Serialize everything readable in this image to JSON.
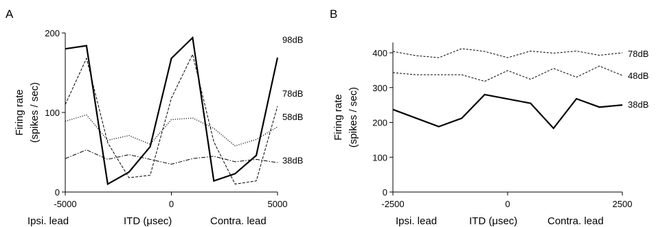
{
  "chart_data": [
    {
      "panel": "A",
      "type": "line",
      "title": "",
      "xlabel": "ITD (μsec)",
      "xlabel_left": "Ipsi. lead",
      "xlabel_right": "Contra. lead",
      "ylabel": "Firing rate",
      "ylabel_sub": "(spikes / sec)",
      "xlim": [
        -5000,
        5000
      ],
      "ylim": [
        0,
        200
      ],
      "xticks": [
        -5000,
        0,
        5000
      ],
      "yticks": [
        0,
        100,
        200
      ],
      "xtick_labels": [
        "-5000",
        "0",
        "5000"
      ],
      "ytick_labels": [
        "0",
        "100",
        "200"
      ],
      "series": [
        {
          "name": "98dB",
          "style": "solid-bold",
          "label_y": 192,
          "x": [
            -5000,
            -4000,
            -3000,
            -2000,
            -1000,
            0,
            1000,
            2000,
            3000,
            4000,
            5000
          ],
          "y": [
            180,
            184,
            10,
            25,
            57,
            168,
            194,
            14,
            23,
            46,
            169
          ]
        },
        {
          "name": "78dB",
          "style": "dashed",
          "label_y": 124,
          "x": [
            -5000,
            -4000,
            -3000,
            -2000,
            -1000,
            0,
            1000,
            2000,
            3000,
            4000,
            5000
          ],
          "y": [
            110,
            168,
            62,
            18,
            21,
            118,
            173,
            63,
            10,
            14,
            108
          ]
        },
        {
          "name": "58dB",
          "style": "dotted",
          "label_y": 95,
          "x": [
            -5000,
            -4000,
            -3000,
            -2000,
            -1000,
            0,
            1000,
            2000,
            3000,
            4000,
            5000
          ],
          "y": [
            89,
            97,
            65,
            71,
            60,
            91,
            93,
            80,
            58,
            66,
            82
          ]
        },
        {
          "name": "38dB",
          "style": "dashdot",
          "label_y": 40,
          "x": [
            -5000,
            -4000,
            -3000,
            -2000,
            -1000,
            0,
            1000,
            2000,
            3000,
            4000,
            5000
          ],
          "y": [
            42,
            53,
            41,
            47,
            41,
            35,
            42,
            45,
            38,
            41,
            37
          ]
        }
      ]
    },
    {
      "panel": "B",
      "type": "line",
      "title": "",
      "xlabel": "ITD (μsec)",
      "xlabel_left": "Ipsi. lead",
      "xlabel_right": "Contra. lead",
      "ylabel": "Firing rate",
      "ylabel_sub": "(spikes / sec)",
      "xlim": [
        -2500,
        2500
      ],
      "ylim": [
        0,
        450
      ],
      "xticks": [
        -2500,
        0,
        2500
      ],
      "yticks": [
        0,
        100,
        200,
        300,
        400
      ],
      "xtick_labels": [
        "-2500",
        "0",
        "2500"
      ],
      "ytick_labels": [
        "0",
        "100",
        "200",
        "300",
        "400"
      ],
      "series": [
        {
          "name": "78dB",
          "style": "dashed-fine",
          "label_y": 398,
          "x": [
            -2500,
            -2000,
            -1500,
            -1000,
            -500,
            0,
            500,
            1000,
            1500,
            2000,
            2500
          ],
          "y": [
            404,
            392,
            386,
            412,
            404,
            386,
            405,
            399,
            405,
            393,
            400
          ]
        },
        {
          "name": "48dB",
          "style": "dashed-fine",
          "label_y": 335,
          "x": [
            -2500,
            -2000,
            -1500,
            -1000,
            -500,
            0,
            500,
            1000,
            1500,
            2000,
            2500
          ],
          "y": [
            343,
            337,
            337,
            337,
            318,
            349,
            324,
            355,
            330,
            362,
            335
          ]
        },
        {
          "name": "38dB",
          "style": "solid-bold",
          "label_y": 252,
          "x": [
            -2500,
            -1500,
            -1000,
            -500,
            500,
            1000,
            1500,
            2000,
            2500
          ],
          "y": [
            237,
            188,
            212,
            280,
            255,
            183,
            268,
            244,
            250
          ]
        }
      ]
    }
  ]
}
